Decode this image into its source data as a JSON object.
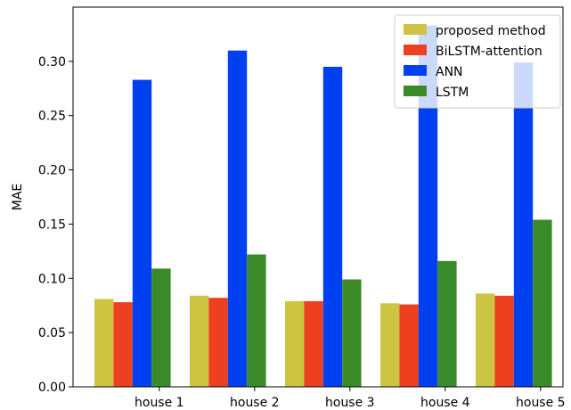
{
  "chart_data": {
    "type": "bar",
    "title": "",
    "xlabel": "",
    "ylabel": "MAE",
    "ylim": [
      0,
      0.35
    ],
    "yticks": [
      0.0,
      0.05,
      0.1,
      0.15,
      0.2,
      0.25,
      0.3
    ],
    "ytick_labels": [
      "0.00",
      "0.05",
      "0.10",
      "0.15",
      "0.20",
      "0.25",
      "0.30"
    ],
    "categories": [
      "house 1",
      "house 2",
      "house 3",
      "house 4",
      "house 5"
    ],
    "grid": false,
    "legend_position": "top-right",
    "series": [
      {
        "name": "proposed method",
        "color": "#cdc441",
        "values": [
          0.081,
          0.084,
          0.079,
          0.077,
          0.086
        ]
      },
      {
        "name": "BiLSTM-attention",
        "color": "#ed4020",
        "values": [
          0.078,
          0.082,
          0.079,
          0.076,
          0.084
        ]
      },
      {
        "name": "ANN",
        "color": "#0040f0",
        "values": [
          0.283,
          0.31,
          0.295,
          0.333,
          0.299
        ]
      },
      {
        "name": "LSTM",
        "color": "#3a8a2a",
        "values": [
          0.109,
          0.122,
          0.099,
          0.116,
          0.154
        ]
      }
    ]
  }
}
